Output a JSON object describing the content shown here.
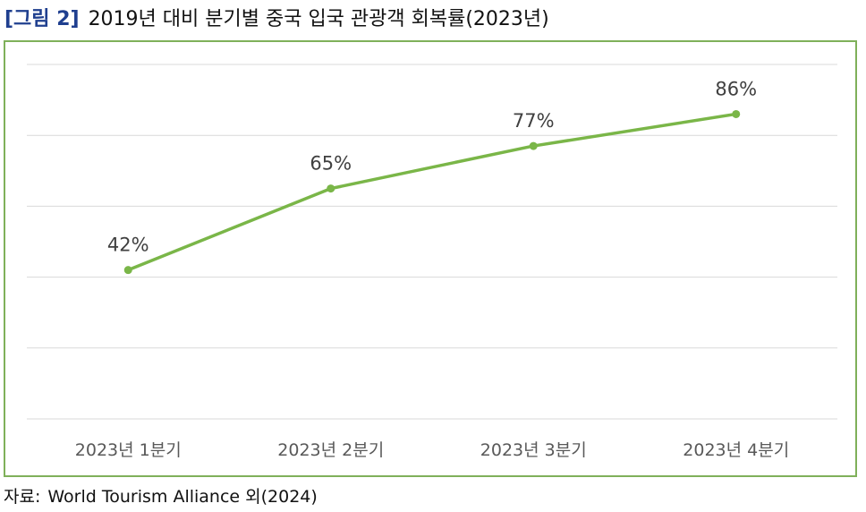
{
  "header": {
    "figure_label": "[그림 2]",
    "title": "2019년 대비 분기별 중국 입국 관광객 회복률(2023년)"
  },
  "footer": {
    "source_label": "자료:",
    "source_text": "World Tourism Alliance 외(2024)"
  },
  "colors": {
    "line": "#7ab648",
    "frame": "#7fb05a",
    "grid": "#d9d9d9",
    "title_label": "#1f3f8f"
  },
  "chart_data": {
    "type": "line",
    "title": "2019년 대비 분기별 중국 입국 관광객 회복률(2023년)",
    "xlabel": "",
    "ylabel": "",
    "categories": [
      "2023년 1분기",
      "2023년 2분기",
      "2023년 3분기",
      "2023년 4분기"
    ],
    "series": [
      {
        "values": [
          42,
          65,
          77,
          86
        ],
        "data_labels": [
          "42%",
          "65%",
          "77%",
          "86%"
        ]
      }
    ],
    "ylim": [
      0,
      100
    ],
    "y_gridlines": [
      0,
      20,
      40,
      60,
      80,
      100
    ],
    "grid": true,
    "y_tick_labels_visible": false,
    "legend": "none"
  }
}
